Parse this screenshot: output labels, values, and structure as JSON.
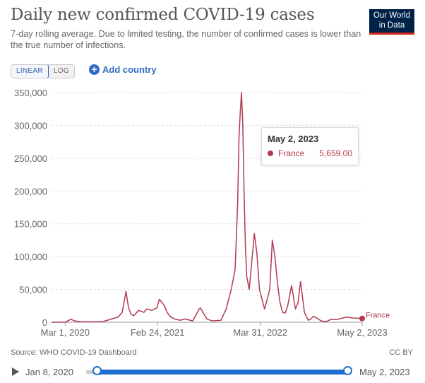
{
  "header": {
    "title": "Daily new confirmed COVID-19 cases",
    "subtitle": "7-day rolling average. Due to limited testing, the number of confirmed cases is lower than the true number of infections."
  },
  "logo": {
    "line1": "Our World",
    "line2": "in Data"
  },
  "controls": {
    "linear_label": "LINEAR",
    "log_label": "LOG",
    "add_country_label": "Add country"
  },
  "tooltip": {
    "date": "May 2, 2023",
    "entity": "France",
    "value": "5,659.00"
  },
  "footer": {
    "source": "Source: WHO COVID-19 Dashboard",
    "license": "CC BY"
  },
  "timeline": {
    "start_label": "Jan 8, 2020",
    "end_label": "May 2, 2023"
  },
  "colors": {
    "series": "#b13a4f",
    "grid": "#dddddd",
    "accent": "#1f6fd1"
  },
  "chart_data": {
    "type": "line",
    "title": "Daily new confirmed COVID-19 cases",
    "ylim": [
      0,
      350000
    ],
    "yticks": [
      0,
      50000,
      100000,
      150000,
      200000,
      250000,
      300000,
      350000
    ],
    "ytick_labels": [
      "0",
      "50,000",
      "100,000",
      "150,000",
      "200,000",
      "250,000",
      "300,000",
      "350,000"
    ],
    "xlim": [
      0,
      1210
    ],
    "xticks": [
      {
        "day": 53,
        "label": "Mar 1, 2020"
      },
      {
        "day": 413,
        "label": "Feb 24, 2021"
      },
      {
        "day": 813,
        "label": "Mar 31, 2022"
      },
      {
        "day": 1210,
        "label": "May 2, 2023"
      }
    ],
    "x_unit": "days since Jan 8, 2020",
    "series": [
      {
        "name": "France",
        "x": [
          0,
          35,
          53,
          75,
          90,
          110,
          140,
          200,
          260,
          275,
          290,
          300,
          310,
          320,
          340,
          360,
          370,
          390,
          410,
          420,
          440,
          450,
          465,
          480,
          500,
          520,
          550,
          575,
          580,
          590,
          605,
          625,
          660,
          680,
          700,
          715,
          725,
          730,
          735,
          740,
          745,
          750,
          755,
          760,
          770,
          790,
          800,
          810,
          830,
          850,
          860,
          870,
          880,
          890,
          900,
          910,
          920,
          935,
          950,
          960,
          970,
          985,
          1000,
          1010,
          1020,
          1035,
          1050,
          1060,
          1070,
          1090,
          1110,
          1130,
          1150,
          1175,
          1195,
          1210
        ],
        "y": [
          0,
          0,
          100,
          4500,
          2000,
          1000,
          500,
          1000,
          8000,
          15000,
          47000,
          22000,
          12000,
          10000,
          18000,
          15000,
          20000,
          18000,
          22000,
          35000,
          25000,
          15000,
          8000,
          5000,
          3000,
          5000,
          2000,
          20000,
          22000,
          15000,
          5000,
          2000,
          3000,
          20000,
          50000,
          80000,
          180000,
          280000,
          320000,
          350000,
          300000,
          200000,
          120000,
          70000,
          50000,
          135000,
          105000,
          50000,
          20000,
          50000,
          125000,
          100000,
          60000,
          30000,
          15000,
          14000,
          25000,
          56000,
          20000,
          30000,
          62000,
          15000,
          3000,
          5000,
          9000,
          6000,
          2000,
          1500,
          1200,
          4500,
          4000,
          6000,
          8000,
          6500,
          6000,
          5659
        ]
      }
    ],
    "end_label": "France",
    "end_value": 5659
  }
}
